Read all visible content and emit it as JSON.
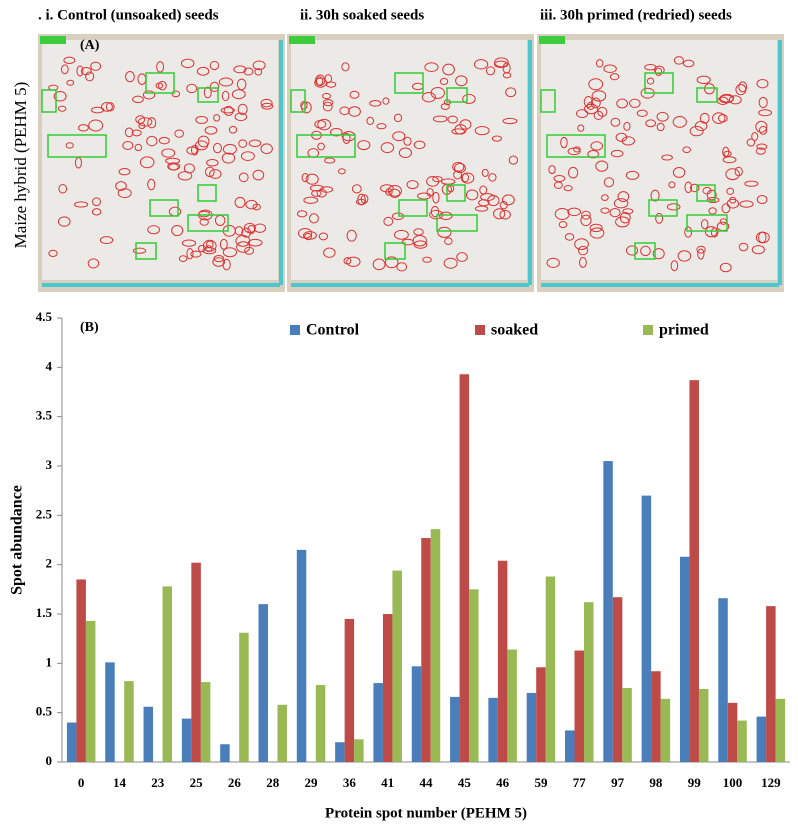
{
  "figure": {
    "panel_a": {
      "label": "(A)",
      "row_label": "Maize hybrid (PEHM 5)",
      "column_titles": [
        ". i. Control (unsoaked) seeds",
        "ii. 30h soaked seeds",
        "iii. 30h primed (redried) seeds"
      ]
    }
  },
  "chart_data": {
    "type": "bar",
    "panel_label": "(B)",
    "x_label": "Protein spot number (PEHM 5)",
    "y_label": "Spot abundance",
    "categories": [
      "0",
      "14",
      "23",
      "25",
      "26",
      "28",
      "29",
      "36",
      "41",
      "44",
      "45",
      "46",
      "59",
      "77",
      "97",
      "98",
      "99",
      "100",
      "129"
    ],
    "series": [
      {
        "name": "Control",
        "color": "#4a7ebb",
        "values": [
          0.4,
          1.01,
          0.56,
          0.44,
          0.18,
          1.6,
          2.15,
          0.2,
          0.8,
          0.97,
          0.66,
          0.65,
          0.7,
          0.32,
          3.05,
          2.7,
          2.08,
          1.66,
          0.46
        ]
      },
      {
        "name": "soaked",
        "color": "#be4b48",
        "values": [
          1.85,
          0,
          0,
          2.02,
          0,
          0,
          0,
          1.45,
          1.5,
          2.27,
          3.93,
          2.04,
          0.96,
          1.13,
          1.67,
          0.92,
          3.87,
          0.6,
          1.58
        ]
      },
      {
        "name": "primed",
        "color": "#98b954",
        "values": [
          1.43,
          0.82,
          1.78,
          0.81,
          1.31,
          0.58,
          0.78,
          0.23,
          1.94,
          2.36,
          1.75,
          1.14,
          1.88,
          1.62,
          0.75,
          0.64,
          0.74,
          0.42,
          0.64
        ]
      }
    ],
    "ylim": [
      0,
      4.5
    ],
    "yticks": [
      0,
      0.5,
      1,
      1.5,
      2,
      2.5,
      3,
      3.5,
      4,
      4.5
    ],
    "grid": false,
    "legend": "top"
  }
}
